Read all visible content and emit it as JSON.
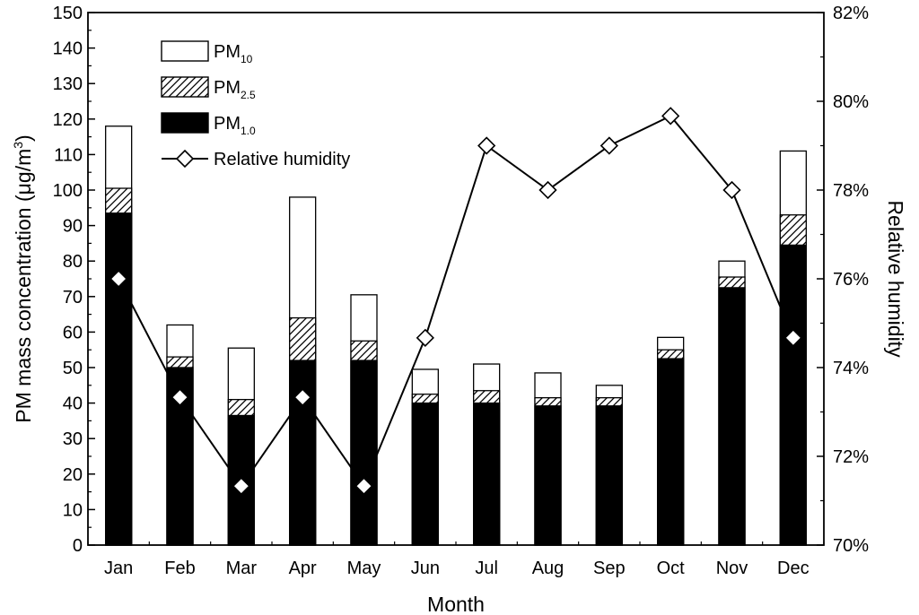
{
  "chart_data": {
    "type": "bar",
    "categories": [
      "Jan",
      "Feb",
      "Mar",
      "Apr",
      "May",
      "Jun",
      "Jul",
      "Aug",
      "Sep",
      "Oct",
      "Nov",
      "Dec"
    ],
    "series": [
      {
        "name": "PM",
        "subscript": "1.0",
        "pattern": "solid",
        "values": [
          93.5,
          50,
          36.5,
          52,
          52,
          40,
          40,
          39.2,
          39.2,
          52.5,
          72.5,
          84.5
        ]
      },
      {
        "name": "PM",
        "subscript": "2.5",
        "pattern": "hatch",
        "values": [
          100.5,
          53,
          41,
          64,
          57.5,
          42.5,
          43.5,
          41.5,
          41.5,
          55,
          75.5,
          93
        ]
      },
      {
        "name": "PM",
        "subscript": "10",
        "pattern": "open",
        "values": [
          118,
          62,
          55.5,
          98,
          70.5,
          49.5,
          51,
          48.5,
          45,
          58.5,
          80,
          111
        ]
      }
    ],
    "line_series": {
      "name": "Relative humidity",
      "axis": "right",
      "values": [
        76.0,
        73.33,
        71.33,
        73.33,
        71.33,
        74.67,
        79.0,
        78.0,
        79.0,
        79.67,
        78.0,
        74.67
      ],
      "unit": "%"
    },
    "xlabel": "Month",
    "ylabel_parts": [
      "PM mass concentration (",
      "μ",
      "g/m",
      "3",
      ")"
    ],
    "y2label": "Relative humidity",
    "ylim": [
      0,
      150
    ],
    "yticks": [
      0,
      10,
      20,
      30,
      40,
      50,
      60,
      70,
      80,
      90,
      100,
      110,
      120,
      130,
      140,
      150
    ],
    "y2lim": [
      70,
      82
    ],
    "y2ticks": [
      70,
      72,
      74,
      76,
      78,
      80,
      82
    ],
    "y2tick_labels": [
      "70%",
      "72%",
      "74%",
      "76%",
      "78%",
      "80%",
      "82%"
    ],
    "legend": {
      "position": "top-left",
      "entries": [
        {
          "label": "PM",
          "sub": "10",
          "marker": "open-box"
        },
        {
          "label": "PM",
          "sub": "2.5",
          "marker": "hatch-box"
        },
        {
          "label": "PM",
          "sub": "1.0",
          "marker": "solid-box"
        },
        {
          "label": "Relative humidity",
          "sub": "",
          "marker": "line-diamond"
        }
      ]
    },
    "grid": false,
    "colors": {
      "bar_solid": "#000000",
      "bar_open": "#ffffff",
      "line": "#000000",
      "marker_fill": "#ffffff"
    }
  }
}
